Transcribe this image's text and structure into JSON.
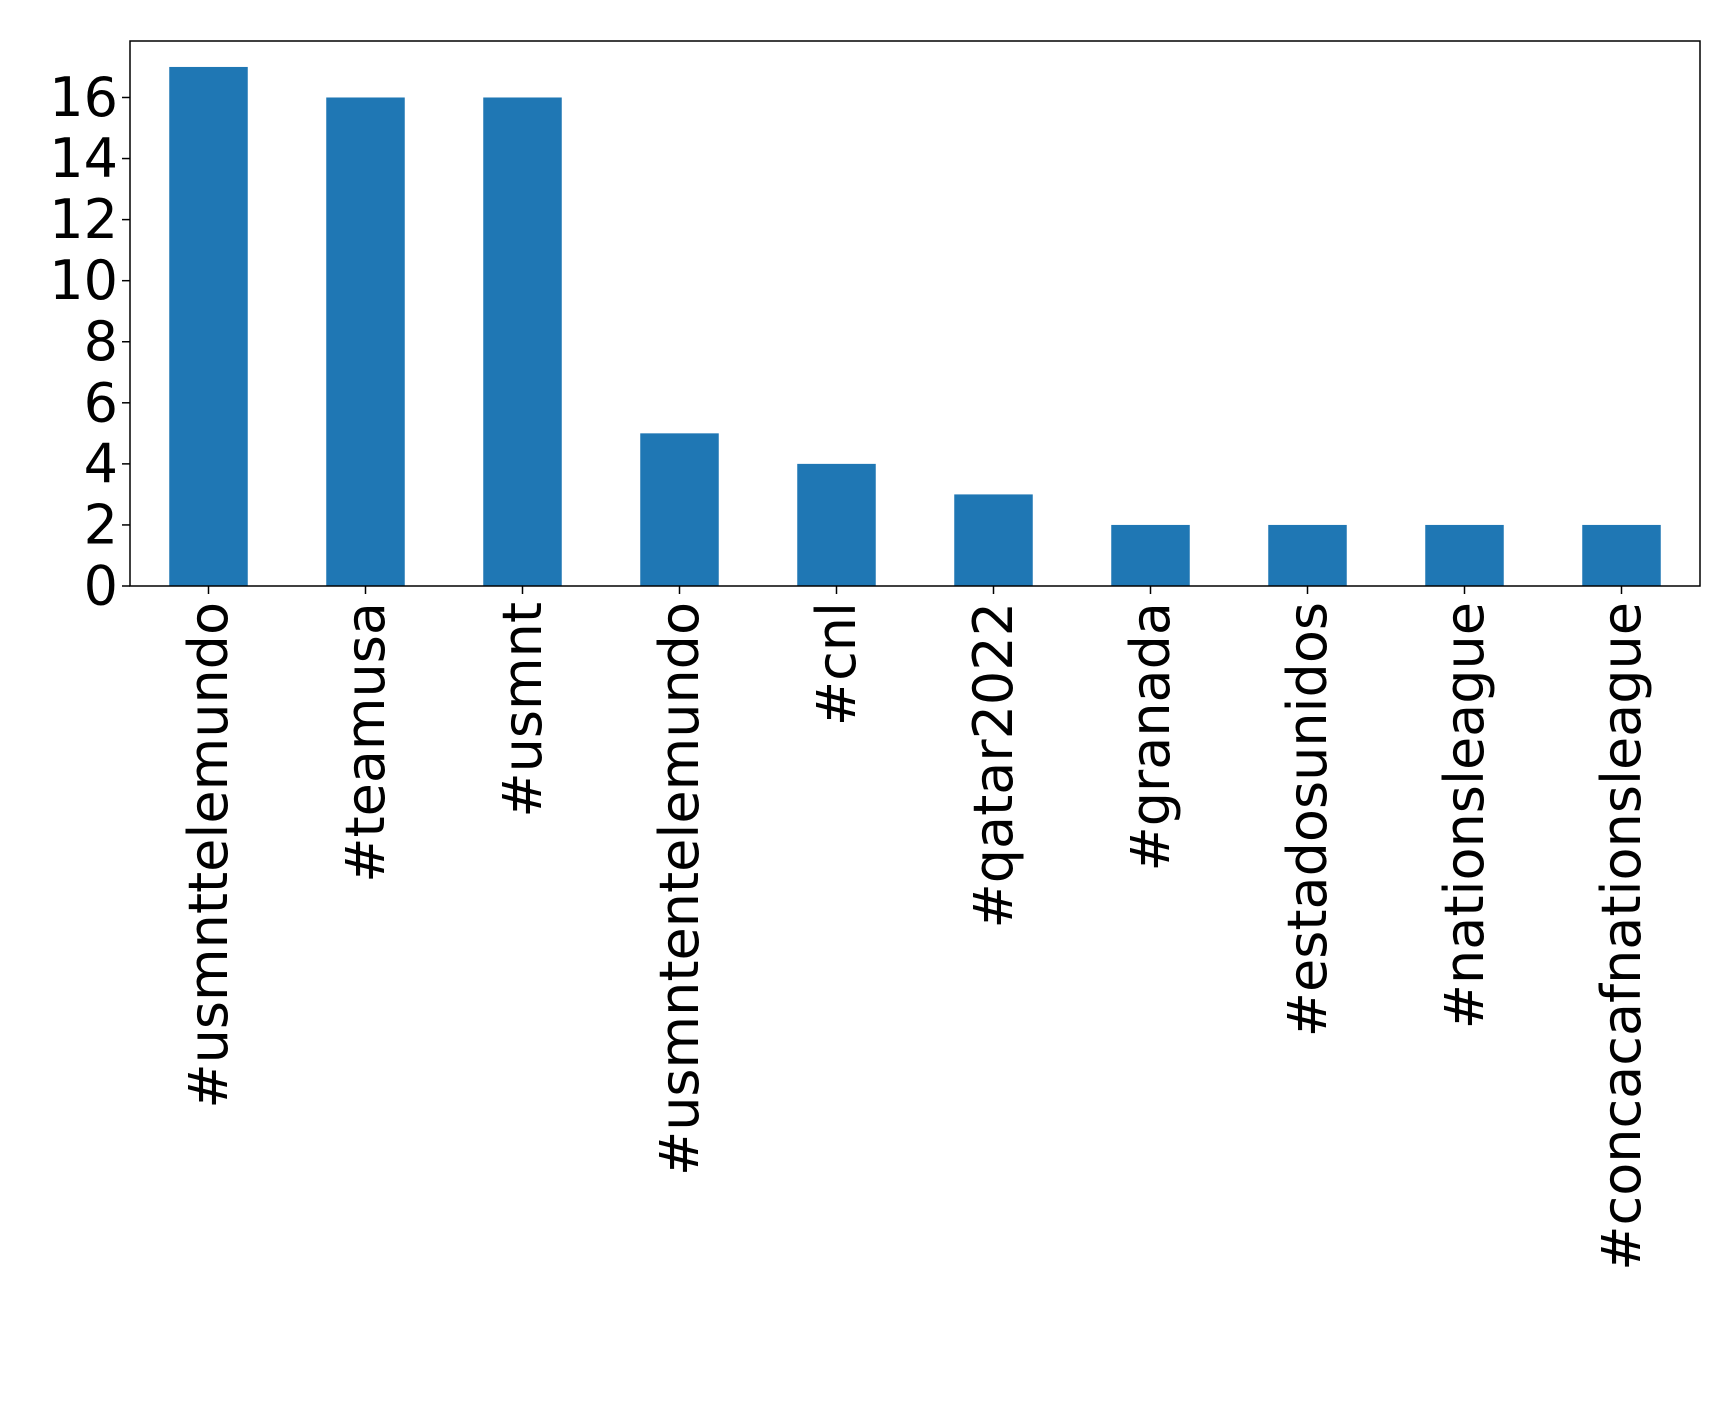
{
  "chart_data": {
    "type": "bar",
    "title": "",
    "xlabel": "",
    "ylabel": "",
    "categories": [
      "#usmnttelemundo",
      "#teamusa",
      "#usmnt",
      "#usmntentelemundo",
      "#cnl",
      "#qatar2022",
      "#granada",
      "#estadosunidos",
      "#nationsleague",
      "#concacafnationsleague"
    ],
    "values": [
      17,
      16,
      16,
      5,
      4,
      3,
      2,
      2,
      2,
      2
    ],
    "ylim": [
      0,
      17.85
    ],
    "yticks": [
      0,
      2,
      4,
      6,
      8,
      10,
      12,
      14,
      16
    ],
    "grid": false,
    "legend": "none",
    "bar_color": "#1f77b4",
    "axis_color": "#000000",
    "x_tick_rotation": "vertical"
  }
}
